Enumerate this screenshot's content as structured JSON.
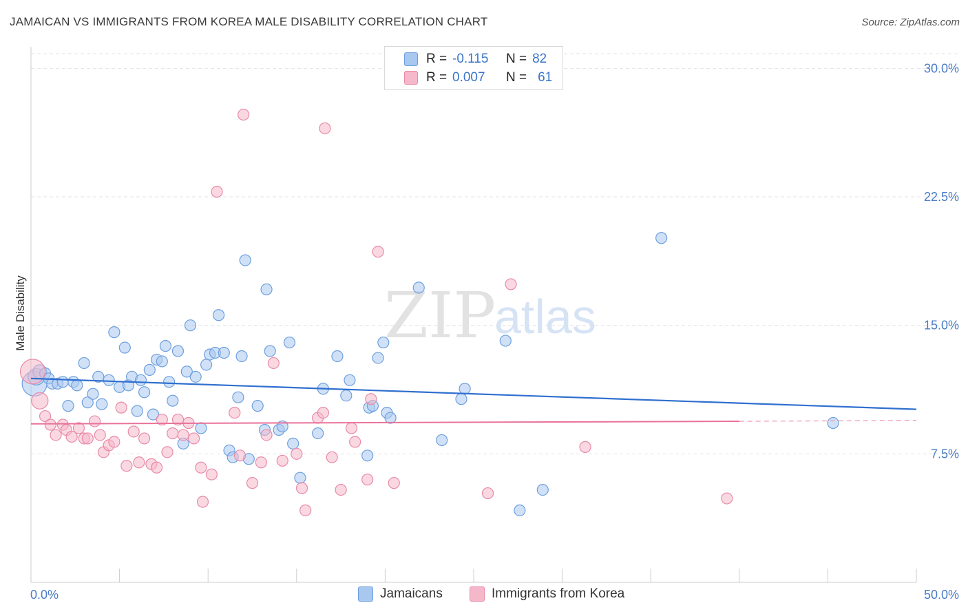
{
  "title": "JAMAICAN VS IMMIGRANTS FROM KOREA MALE DISABILITY CORRELATION CHART",
  "source": "Source: ZipAtlas.com",
  "watermark": {
    "zip": "ZIP",
    "atlas": "atlas"
  },
  "colors": {
    "blue_fill": "#a9c8f0",
    "blue_stroke": "#6d9fde",
    "blue_line": "#2f6fcf",
    "pink_fill": "#f5b8cb",
    "pink_stroke": "#e88aa8",
    "pink_line": "#e9719a",
    "tick_text": "#4a7cc7",
    "grid": "#e3e3e3"
  },
  "legend": {
    "rows": [
      {
        "r_label": "R =",
        "r_value": "-0.115",
        "n_label": "N =",
        "n_value": "82",
        "color": "#a9c8f0"
      },
      {
        "r_label": "R =",
        "r_value": "0.007",
        "n_label": "N =",
        "n_value": "61",
        "color": "#f5b8cb"
      }
    ]
  },
  "bottom_legend": [
    {
      "label": "Jamaicans",
      "color": "#a9c8f0"
    },
    {
      "label": "Immigrants from Korea",
      "color": "#f5b8cb"
    }
  ],
  "chart_data": {
    "type": "scatter",
    "title": "JAMAICAN VS IMMIGRANTS FROM KOREA MALE DISABILITY CORRELATION CHART",
    "xlabel": "",
    "ylabel": "Male Disability",
    "xlim": [
      0,
      50
    ],
    "ylim": [
      0,
      31.5
    ],
    "x_tick_labels": [
      "0.0%",
      "50.0%"
    ],
    "y_ticks": [
      7.5,
      15.0,
      22.5,
      30.0
    ],
    "y_tick_labels": [
      "7.5%",
      "15.0%",
      "22.5%",
      "30.0%"
    ],
    "grid": "horizontal dashed",
    "series": [
      {
        "name": "Jamaicans",
        "points": [
          [
            0.2,
            11.6,
            18
          ],
          [
            0.3,
            12.0,
            12
          ],
          [
            0.5,
            12.3,
            10
          ],
          [
            0.8,
            12.2,
            8
          ],
          [
            1.0,
            11.9,
            8
          ],
          [
            1.2,
            11.6,
            8
          ],
          [
            1.5,
            11.6,
            8
          ],
          [
            1.8,
            11.7,
            8
          ],
          [
            2.1,
            10.3,
            8
          ],
          [
            2.4,
            11.7,
            8
          ],
          [
            2.6,
            11.5,
            8
          ],
          [
            3.0,
            12.8,
            8
          ],
          [
            3.2,
            10.5,
            8
          ],
          [
            3.5,
            11.0,
            8
          ],
          [
            3.8,
            12.0,
            8
          ],
          [
            4.0,
            10.4,
            8
          ],
          [
            4.4,
            11.8,
            8
          ],
          [
            4.7,
            14.6,
            8
          ],
          [
            5.0,
            11.4,
            8
          ],
          [
            5.3,
            13.7,
            8
          ],
          [
            5.5,
            11.5,
            8
          ],
          [
            5.7,
            12.0,
            8
          ],
          [
            6.0,
            10.0,
            8
          ],
          [
            6.2,
            11.8,
            8
          ],
          [
            6.4,
            11.1,
            8
          ],
          [
            6.7,
            12.4,
            8
          ],
          [
            6.9,
            9.8,
            8
          ],
          [
            7.1,
            13.0,
            8
          ],
          [
            7.4,
            12.9,
            8
          ],
          [
            7.6,
            13.8,
            8
          ],
          [
            7.8,
            11.7,
            8
          ],
          [
            8.0,
            10.6,
            8
          ],
          [
            8.3,
            13.5,
            8
          ],
          [
            8.6,
            8.1,
            8
          ],
          [
            8.8,
            12.3,
            8
          ],
          [
            9.0,
            15.0,
            8
          ],
          [
            9.3,
            12.0,
            8
          ],
          [
            9.6,
            9.0,
            8
          ],
          [
            9.9,
            12.7,
            8
          ],
          [
            10.1,
            13.3,
            8
          ],
          [
            10.4,
            13.4,
            8
          ],
          [
            10.6,
            15.6,
            8
          ],
          [
            10.9,
            13.4,
            8
          ],
          [
            11.2,
            7.7,
            8
          ],
          [
            11.4,
            7.3,
            8
          ],
          [
            11.7,
            10.8,
            8
          ],
          [
            11.9,
            13.2,
            8
          ],
          [
            12.1,
            18.8,
            8
          ],
          [
            12.3,
            7.2,
            8
          ],
          [
            12.8,
            10.3,
            8
          ],
          [
            13.2,
            8.9,
            8
          ],
          [
            13.3,
            17.1,
            8
          ],
          [
            13.5,
            13.5,
            8
          ],
          [
            14.0,
            8.9,
            8
          ],
          [
            14.2,
            9.1,
            8
          ],
          [
            14.6,
            14.0,
            8
          ],
          [
            14.8,
            8.1,
            8
          ],
          [
            15.2,
            6.1,
            8
          ],
          [
            16.2,
            8.7,
            8
          ],
          [
            16.5,
            11.3,
            8
          ],
          [
            17.3,
            13.2,
            8
          ],
          [
            17.8,
            10.9,
            8
          ],
          [
            18.0,
            11.8,
            8
          ],
          [
            19.0,
            7.4,
            8
          ],
          [
            19.1,
            10.2,
            8
          ],
          [
            19.3,
            10.3,
            8
          ],
          [
            19.6,
            13.1,
            8
          ],
          [
            19.9,
            14.0,
            8
          ],
          [
            20.1,
            9.9,
            8
          ],
          [
            20.3,
            9.6,
            8
          ],
          [
            21.9,
            17.2,
            8
          ],
          [
            23.2,
            8.3,
            8
          ],
          [
            24.3,
            10.7,
            8
          ],
          [
            24.5,
            11.3,
            8
          ],
          [
            26.8,
            14.1,
            8
          ],
          [
            27.6,
            4.2,
            8
          ],
          [
            28.9,
            5.4,
            8
          ],
          [
            35.6,
            20.1,
            8
          ],
          [
            45.3,
            9.3,
            8
          ]
        ]
      },
      {
        "name": "Immigrants from Korea",
        "points": [
          [
            0.1,
            12.3,
            18
          ],
          [
            0.5,
            10.6,
            12
          ],
          [
            0.8,
            9.7,
            8
          ],
          [
            1.1,
            9.2,
            8
          ],
          [
            1.4,
            8.6,
            8
          ],
          [
            1.8,
            9.2,
            8
          ],
          [
            2.0,
            8.9,
            8
          ],
          [
            2.3,
            8.5,
            8
          ],
          [
            2.7,
            9.0,
            8
          ],
          [
            3.0,
            8.4,
            8
          ],
          [
            3.2,
            8.4,
            8
          ],
          [
            3.6,
            9.4,
            8
          ],
          [
            3.9,
            8.6,
            8
          ],
          [
            4.1,
            7.6,
            8
          ],
          [
            4.4,
            8.0,
            8
          ],
          [
            4.7,
            8.2,
            8
          ],
          [
            5.1,
            10.2,
            8
          ],
          [
            5.4,
            6.8,
            8
          ],
          [
            5.8,
            8.8,
            8
          ],
          [
            6.1,
            7.0,
            8
          ],
          [
            6.4,
            8.4,
            8
          ],
          [
            6.8,
            6.9,
            8
          ],
          [
            7.1,
            6.7,
            8
          ],
          [
            7.4,
            9.5,
            8
          ],
          [
            7.7,
            7.6,
            8
          ],
          [
            8.0,
            8.7,
            8
          ],
          [
            8.3,
            9.5,
            8
          ],
          [
            8.6,
            8.6,
            8
          ],
          [
            8.9,
            9.3,
            8
          ],
          [
            9.2,
            8.4,
            8
          ],
          [
            9.6,
            6.7,
            8
          ],
          [
            9.7,
            4.7,
            8
          ],
          [
            10.2,
            6.3,
            8
          ],
          [
            10.5,
            22.8,
            8
          ],
          [
            11.5,
            9.9,
            8
          ],
          [
            11.8,
            7.4,
            8
          ],
          [
            12.0,
            27.3,
            8
          ],
          [
            12.5,
            5.8,
            8
          ],
          [
            13.0,
            7.0,
            8
          ],
          [
            13.3,
            8.6,
            8
          ],
          [
            13.7,
            12.8,
            8
          ],
          [
            14.2,
            7.1,
            8
          ],
          [
            15.0,
            7.5,
            8
          ],
          [
            15.3,
            5.5,
            8
          ],
          [
            15.5,
            4.2,
            8
          ],
          [
            16.2,
            9.6,
            8
          ],
          [
            16.5,
            9.9,
            8
          ],
          [
            16.6,
            26.5,
            8
          ],
          [
            17.0,
            7.3,
            8
          ],
          [
            17.5,
            5.4,
            8
          ],
          [
            18.1,
            9.0,
            8
          ],
          [
            18.3,
            8.2,
            8
          ],
          [
            19.0,
            6.0,
            8
          ],
          [
            19.2,
            10.7,
            8
          ],
          [
            19.6,
            19.3,
            8
          ],
          [
            20.5,
            5.8,
            8
          ],
          [
            25.8,
            5.2,
            8
          ],
          [
            27.1,
            17.4,
            8
          ],
          [
            31.3,
            7.9,
            8
          ],
          [
            39.3,
            4.9,
            8
          ]
        ]
      }
    ],
    "trend_lines": [
      {
        "series": "Jamaicans",
        "x": [
          0,
          50
        ],
        "y": [
          11.9,
          10.1
        ],
        "style": "solid"
      },
      {
        "series": "Immigrants from Korea",
        "x": [
          0,
          40
        ],
        "y": [
          9.25,
          9.4
        ],
        "style": "solid"
      },
      {
        "series": "Immigrants from Korea",
        "x": [
          40,
          50
        ],
        "y": [
          9.4,
          9.45
        ],
        "style": "dashed"
      }
    ]
  }
}
